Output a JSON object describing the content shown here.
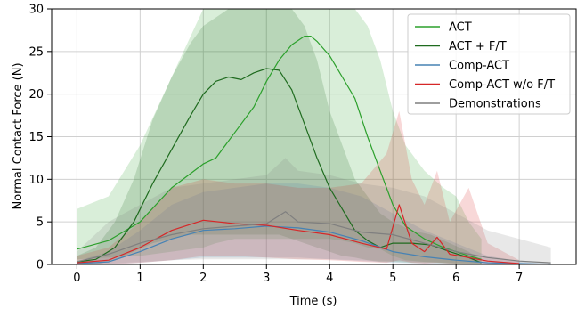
{
  "chart_data": {
    "type": "line",
    "xlabel": "Time (s)",
    "ylabel": "Normal Contact Force (N)",
    "xlim": [
      -0.4,
      7.9
    ],
    "ylim": [
      0,
      30
    ],
    "x_ticks": [
      "0",
      "1",
      "2",
      "3",
      "4",
      "5",
      "6",
      "7"
    ],
    "y_ticks": [
      "0",
      "5",
      "10",
      "15",
      "20",
      "25",
      "30"
    ],
    "grid": true,
    "legend_position": "top-right",
    "series": [
      {
        "name": "ACT",
        "color": "#2ca02c",
        "x": [
          0,
          0.5,
          1.0,
          1.5,
          2.0,
          2.2,
          2.5,
          2.8,
          3.0,
          3.2,
          3.4,
          3.6,
          3.7,
          3.8,
          4.0,
          4.2,
          4.4,
          4.6,
          4.8,
          5.0,
          5.2,
          5.5,
          5.8,
          6.0,
          6.2,
          6.4
        ],
        "mean": [
          1.8,
          2.8,
          5.0,
          9.0,
          11.8,
          12.5,
          15.5,
          18.5,
          21.5,
          24.0,
          25.8,
          26.8,
          26.8,
          26.2,
          24.5,
          22.0,
          19.5,
          15.0,
          11.0,
          7.0,
          4.5,
          3.0,
          2.0,
          1.5,
          1.0,
          0.6
        ],
        "lower": [
          0.6,
          0.8,
          1.0,
          1.5,
          2.0,
          2.5,
          3.0,
          3.0,
          3.0,
          3.0,
          3.0,
          3.0,
          3.0,
          3.0,
          3.0,
          2.8,
          2.5,
          2.0,
          1.8,
          1.0,
          0.5,
          0.3,
          0.2,
          0.1,
          0.1,
          0.0
        ],
        "upper": [
          6.5,
          8.0,
          14.0,
          22.0,
          30.0,
          30.0,
          30.0,
          30.0,
          30.0,
          30.0,
          30.0,
          30.0,
          30.0,
          30.0,
          30.0,
          30.0,
          30.0,
          28.0,
          24.0,
          18.0,
          14.0,
          11.0,
          9.0,
          8.0,
          5.0,
          3.0
        ]
      },
      {
        "name": "ACT + F/T",
        "color": "#1f6b1f",
        "x": [
          0,
          0.3,
          0.6,
          0.9,
          1.2,
          1.5,
          1.8,
          2.0,
          2.2,
          2.4,
          2.6,
          2.8,
          3.0,
          3.2,
          3.4,
          3.6,
          3.8,
          4.0,
          4.2,
          4.4,
          4.6,
          4.8,
          5.0,
          5.3,
          5.6,
          5.9,
          6.2,
          6.4
        ],
        "mean": [
          0.3,
          0.6,
          2.0,
          5.0,
          9.5,
          13.5,
          17.5,
          20.0,
          21.5,
          22.0,
          21.7,
          22.5,
          23.0,
          22.8,
          20.5,
          16.5,
          12.5,
          9.0,
          6.5,
          4.0,
          2.8,
          2.0,
          2.5,
          2.5,
          2.3,
          1.5,
          0.8,
          0.2
        ],
        "lower": [
          0.0,
          0.0,
          0.5,
          1.5,
          2.5,
          3.0,
          3.5,
          3.5,
          3.5,
          3.5,
          3.5,
          3.5,
          3.5,
          3.5,
          3.0,
          2.5,
          2.0,
          1.5,
          1.0,
          0.8,
          0.5,
          0.3,
          0.3,
          0.2,
          0.2,
          0.1,
          0.0,
          0.0
        ],
        "upper": [
          1.0,
          2.0,
          5.0,
          10.0,
          17.0,
          22.0,
          26.0,
          28.0,
          29.0,
          30.0,
          30.0,
          30.0,
          30.0,
          30.0,
          30.0,
          28.0,
          24.0,
          18.0,
          14.0,
          10.0,
          8.0,
          6.0,
          5.0,
          4.0,
          3.5,
          2.5,
          1.5,
          0.5
        ]
      },
      {
        "name": "Comp-ACT",
        "color": "#4682b4",
        "x": [
          0,
          0.5,
          1.0,
          1.5,
          2.0,
          2.5,
          3.0,
          3.5,
          4.0,
          4.5,
          5.0,
          5.5,
          6.0,
          6.5,
          7.0,
          7.5
        ],
        "mean": [
          0.1,
          0.3,
          1.5,
          3.0,
          4.0,
          4.2,
          4.5,
          4.3,
          3.8,
          2.8,
          1.5,
          0.9,
          0.5,
          0.2,
          0.1,
          0.0
        ],
        "lower": [
          0.0,
          0.0,
          0.2,
          0.5,
          0.8,
          0.8,
          0.8,
          0.8,
          0.6,
          0.4,
          0.2,
          0.1,
          0.0,
          0.0,
          0.0,
          0.0
        ],
        "upper": [
          0.4,
          1.5,
          4.0,
          7.0,
          8.5,
          9.0,
          9.5,
          9.5,
          9.0,
          8.0,
          6.0,
          4.0,
          2.5,
          1.0,
          0.4,
          0.2
        ]
      },
      {
        "name": "Comp-ACT w/o F/T",
        "color": "#d62728",
        "x": [
          0,
          0.5,
          1.0,
          1.5,
          2.0,
          2.5,
          3.0,
          3.5,
          4.0,
          4.5,
          4.9,
          5.1,
          5.3,
          5.5,
          5.7,
          5.9,
          6.2,
          6.5,
          7.0
        ],
        "mean": [
          0.2,
          0.5,
          2.0,
          4.0,
          5.2,
          4.8,
          4.6,
          4.0,
          3.5,
          2.5,
          1.8,
          7.0,
          2.5,
          1.5,
          3.2,
          1.2,
          0.8,
          0.4,
          0.1
        ],
        "lower": [
          0.0,
          0.0,
          0.2,
          0.5,
          1.0,
          1.0,
          0.8,
          0.6,
          0.5,
          0.3,
          0.2,
          0.5,
          0.2,
          0.1,
          0.2,
          0.1,
          0.0,
          0.0,
          0.0
        ],
        "upper": [
          1.0,
          2.0,
          5.0,
          9.0,
          10.0,
          9.5,
          9.5,
          9.0,
          9.0,
          9.5,
          13.0,
          18.0,
          10.0,
          7.0,
          11.0,
          5.0,
          9.0,
          2.5,
          0.5
        ]
      },
      {
        "name": "Demonstrations",
        "color": "#7f7f7f",
        "x": [
          0,
          0.5,
          1.0,
          1.5,
          2.0,
          2.5,
          3.0,
          3.3,
          3.5,
          4.0,
          4.5,
          5.0,
          5.5,
          6.0,
          6.5,
          7.0,
          7.5
        ],
        "mean": [
          0.3,
          1.2,
          2.5,
          3.5,
          4.2,
          4.5,
          4.8,
          6.2,
          5.0,
          4.8,
          3.8,
          3.5,
          2.5,
          1.5,
          0.8,
          0.4,
          0.2
        ],
        "lower": [
          0.0,
          0.1,
          0.3,
          0.5,
          0.6,
          0.6,
          0.6,
          0.6,
          0.6,
          0.6,
          0.5,
          0.4,
          0.3,
          0.2,
          0.1,
          0.0,
          0.0
        ],
        "upper": [
          1.5,
          5.0,
          7.0,
          9.0,
          9.5,
          10.0,
          10.5,
          12.5,
          11.0,
          10.5,
          9.5,
          9.0,
          8.0,
          6.0,
          4.0,
          3.0,
          2.0
        ]
      }
    ]
  }
}
